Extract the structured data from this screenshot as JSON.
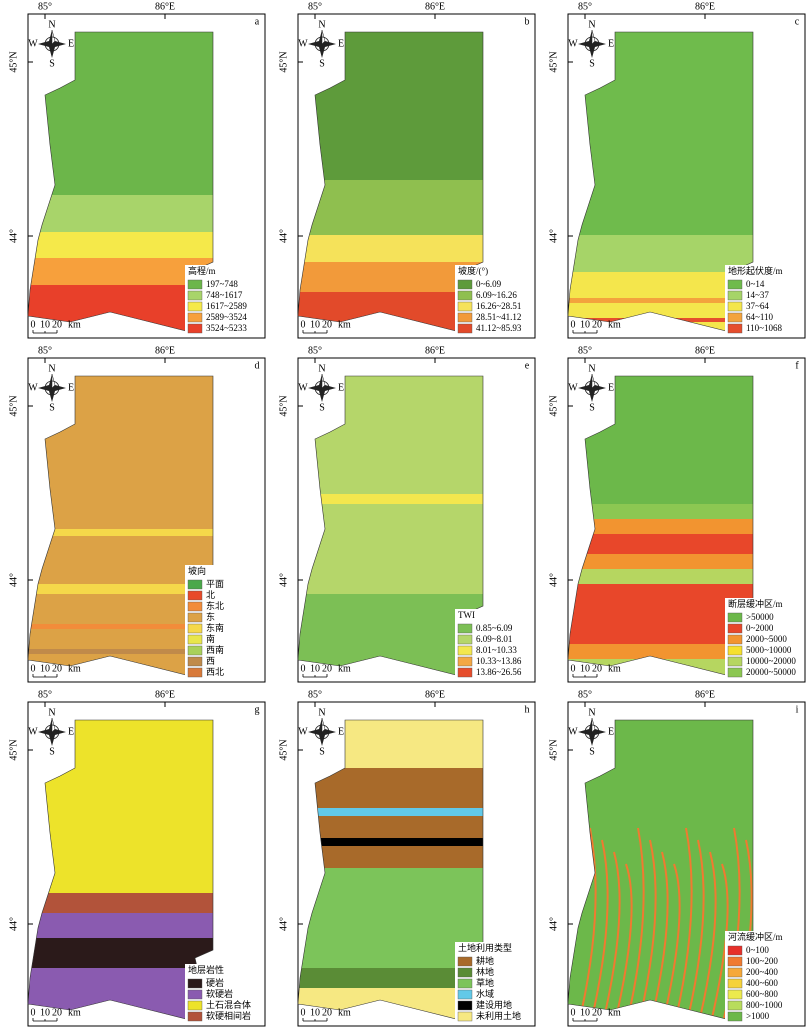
{
  "coords": {
    "lon1": "85°",
    "lon2": "86°E",
    "lat1": "45°N",
    "lat2": "44°"
  },
  "compass": {
    "n": "N",
    "e": "E",
    "s": "S",
    "w": "W"
  },
  "scale": {
    "ticks": [
      "0",
      "10",
      "20"
    ],
    "unit": "km"
  },
  "panels": [
    {
      "letter": "a",
      "legend": {
        "title": "高程/m",
        "items": [
          {
            "label": "197~748",
            "color": "#6cb64a"
          },
          {
            "label": "748~1617",
            "color": "#a8d46a"
          },
          {
            "label": "1617~2589",
            "color": "#f5e94a"
          },
          {
            "label": "2589~3524",
            "color": "#f7a03c"
          },
          {
            "label": "3524~5233",
            "color": "#e8402a"
          }
        ]
      }
    },
    {
      "letter": "b",
      "legend": {
        "title": "坡度/(°)",
        "items": [
          {
            "label": "0~6.09",
            "color": "#5e9b3b"
          },
          {
            "label": "6.09~16.26",
            "color": "#8fbf4f"
          },
          {
            "label": "16.26~28.51",
            "color": "#f5e25a"
          },
          {
            "label": "28.51~41.12",
            "color": "#f29a3a"
          },
          {
            "label": "41.12~85.93",
            "color": "#e24a2a"
          }
        ]
      }
    },
    {
      "letter": "c",
      "legend": {
        "title": "地形起伏度/m",
        "items": [
          {
            "label": "0~14",
            "color": "#6fbb4c"
          },
          {
            "label": "14~37",
            "color": "#a6d468"
          },
          {
            "label": "37~64",
            "color": "#f4e64c"
          },
          {
            "label": "64~110",
            "color": "#f3a33d"
          },
          {
            "label": "110~1068",
            "color": "#e54d2d"
          }
        ]
      }
    },
    {
      "letter": "d",
      "legend": {
        "title": "坡向",
        "items": [
          {
            "label": "平面",
            "color": "#4aa84a"
          },
          {
            "label": "北",
            "color": "#e84a2a"
          },
          {
            "label": "东北",
            "color": "#f28c3a"
          },
          {
            "label": "东",
            "color": "#dca246"
          },
          {
            "label": "东南",
            "color": "#f5d84a"
          },
          {
            "label": "南",
            "color": "#e8e64c"
          },
          {
            "label": "西南",
            "color": "#a9d05a"
          },
          {
            "label": "西",
            "color": "#c08a4a"
          },
          {
            "label": "西北",
            "color": "#d87a3a"
          }
        ]
      }
    },
    {
      "letter": "e",
      "legend": {
        "title": "TWI",
        "items": [
          {
            "label": "0.85~6.09",
            "color": "#7cbf55"
          },
          {
            "label": "6.09~8.01",
            "color": "#b5d66a"
          },
          {
            "label": "8.01~10.33",
            "color": "#f3e74e"
          },
          {
            "label": "10.33~13.86",
            "color": "#f3a744"
          },
          {
            "label": "13.86~26.56",
            "color": "#e64d2c"
          }
        ]
      }
    },
    {
      "letter": "f",
      "legend": {
        "title": "断层缓冲区/m",
        "items": [
          {
            "label": ">50000",
            "color": "#6cb84a"
          },
          {
            "label": "0~2000",
            "color": "#e8472a"
          },
          {
            "label": "2000~5000",
            "color": "#f29430"
          },
          {
            "label": "5000~10000",
            "color": "#f5e02e"
          },
          {
            "label": "10000~20000",
            "color": "#b6d660"
          },
          {
            "label": "20000~50000",
            "color": "#8cc752"
          }
        ]
      }
    },
    {
      "letter": "g",
      "legend": {
        "title": "地层岩性",
        "items": [
          {
            "label": "硬岩",
            "color": "#2b1a1a"
          },
          {
            "label": "软硬岩",
            "color": "#8a5bb0"
          },
          {
            "label": "土石混合体",
            "color": "#ede32a"
          },
          {
            "label": "软硬相间岩",
            "color": "#b2533a"
          }
        ]
      }
    },
    {
      "letter": "h",
      "legend": {
        "title": "土地利用类型",
        "items": [
          {
            "label": "耕地",
            "color": "#a86a2a"
          },
          {
            "label": "林地",
            "color": "#5a8c36"
          },
          {
            "label": "草地",
            "color": "#7cc45a"
          },
          {
            "label": "水域",
            "color": "#62c9e8"
          },
          {
            "label": "建设用地",
            "color": "#000000"
          },
          {
            "label": "未利用土地",
            "color": "#f6e882"
          }
        ]
      }
    },
    {
      "letter": "i",
      "legend": {
        "title": "河流缓冲区/m",
        "items": [
          {
            "label": "0~100",
            "color": "#e6302a"
          },
          {
            "label": "100~200",
            "color": "#f07a30"
          },
          {
            "label": "200~400",
            "color": "#f5a83a"
          },
          {
            "label": "400~600",
            "color": "#f5d23a"
          },
          {
            "label": "600~800",
            "color": "#ecea4e"
          },
          {
            "label": "800~1000",
            "color": "#b8dc5c"
          },
          {
            "label": ">1000",
            "color": "#6cb84a"
          }
        ]
      }
    }
  ]
}
